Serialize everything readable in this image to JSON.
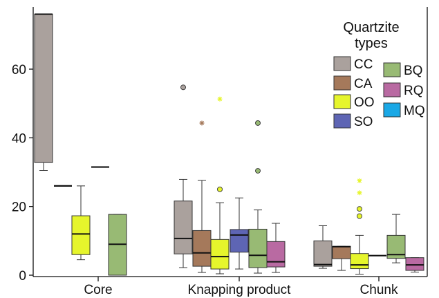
{
  "chart_data": {
    "type": "box",
    "categories": [
      "Core",
      "Knapping product",
      "Chunk"
    ],
    "ylim": [
      0,
      76
    ],
    "yticks": [
      0,
      20,
      40,
      60
    ],
    "ytick_labels": [
      "0",
      "20",
      "40",
      "60"
    ],
    "legend": {
      "title_line1": "Quartzite",
      "title_line2": "types",
      "placement": "top-right"
    },
    "series": [
      {
        "name": "CC",
        "color": "#aaa19d"
      },
      {
        "name": "CA",
        "color": "#a5795b"
      },
      {
        "name": "OO",
        "color": "#e6f52c"
      },
      {
        "name": "SO",
        "color": "#5e65b4"
      },
      {
        "name": "BQ",
        "color": "#98ba74"
      },
      {
        "name": "RQ",
        "color": "#b96aa2"
      },
      {
        "name": "MQ",
        "color": "#1aa8e6"
      }
    ],
    "boxes": [
      {
        "category": "Core",
        "series": "CC",
        "whisker_low": 30.5,
        "q1": 32.8,
        "median": 76,
        "q3": 76,
        "whisker_high": 76,
        "outliers": []
      },
      {
        "category": "Core",
        "series": "CA",
        "single": 26,
        "outliers": []
      },
      {
        "category": "Core",
        "series": "OO",
        "whisker_low": 4.5,
        "q1": 6,
        "median": 12,
        "q3": 17.3,
        "whisker_high": 26,
        "outliers": []
      },
      {
        "category": "Core",
        "series": "SO",
        "single": 31.5,
        "outliers": []
      },
      {
        "category": "Core",
        "series": "BQ",
        "whisker_low": 0,
        "q1": 0,
        "median": 9,
        "q3": 17.7,
        "whisker_high": 17.7,
        "outliers": []
      },
      {
        "category": "Knapping product",
        "series": "CC",
        "whisker_low": 2.2,
        "q1": 6.2,
        "median": 10.7,
        "q3": 21.6,
        "whisker_high": 27.9,
        "outliers": [
          {
            "v": 54.7,
            "m": "circle"
          }
        ]
      },
      {
        "category": "Knapping product",
        "series": "CA",
        "whisker_low": 0.8,
        "q1": 2.6,
        "median": 6.5,
        "q3": 13,
        "whisker_high": 27.6,
        "outliers": [
          {
            "v": 44.3,
            "m": "star"
          }
        ]
      },
      {
        "category": "Knapping product",
        "series": "OO",
        "whisker_low": 0.4,
        "q1": 1.8,
        "median": 5.4,
        "q3": 10.4,
        "whisker_high": 21.1,
        "outliers": [
          {
            "v": 25,
            "m": "circle"
          },
          {
            "v": 51.3,
            "m": "star"
          }
        ]
      },
      {
        "category": "Knapping product",
        "series": "SO",
        "whisker_low": 1.8,
        "q1": 6.7,
        "median": 11.7,
        "q3": 13.3,
        "whisker_high": 22.5,
        "outliers": []
      },
      {
        "category": "Knapping product",
        "series": "BQ",
        "whisker_low": 0.6,
        "q1": 2.2,
        "median": 5.8,
        "q3": 13.4,
        "whisker_high": 19,
        "outliers": [
          {
            "v": 30.4,
            "m": "circle"
          },
          {
            "v": 44.3,
            "m": "circle"
          }
        ]
      },
      {
        "category": "Knapping product",
        "series": "RQ",
        "whisker_low": 0.8,
        "q1": 2.4,
        "median": 3.9,
        "q3": 9.8,
        "whisker_high": 15.1,
        "outliers": []
      },
      {
        "category": "Chunk",
        "series": "CC",
        "whisker_low": 2,
        "q1": 2.6,
        "median": 3.1,
        "q3": 10,
        "whisker_high": 14.4,
        "outliers": []
      },
      {
        "category": "Chunk",
        "series": "CA",
        "whisker_low": 1.4,
        "q1": 4.8,
        "median": 8.3,
        "q3": 8.4,
        "whisker_high": 8.4,
        "outliers": []
      },
      {
        "category": "Chunk",
        "series": "OO",
        "whisker_low": 0.3,
        "q1": 1.9,
        "median": 3,
        "q3": 6.3,
        "whisker_high": 11.6,
        "outliers": [
          {
            "v": 17.2,
            "m": "circle"
          },
          {
            "v": 19.3,
            "m": "circle"
          },
          {
            "v": 24,
            "m": "star"
          },
          {
            "v": 27.5,
            "m": "star"
          }
        ]
      },
      {
        "category": "Chunk",
        "series": "SO",
        "single": 5.7,
        "outliers": []
      },
      {
        "category": "Chunk",
        "series": "BQ",
        "whisker_low": 3.6,
        "q1": 4.9,
        "median": 6,
        "q3": 11.6,
        "whisker_high": 17.7,
        "outliers": []
      },
      {
        "category": "Chunk",
        "series": "RQ",
        "whisker_low": 0.9,
        "q1": 1.4,
        "median": 3,
        "q3": 5.1,
        "whisker_high": 5.1,
        "outliers": []
      }
    ]
  }
}
